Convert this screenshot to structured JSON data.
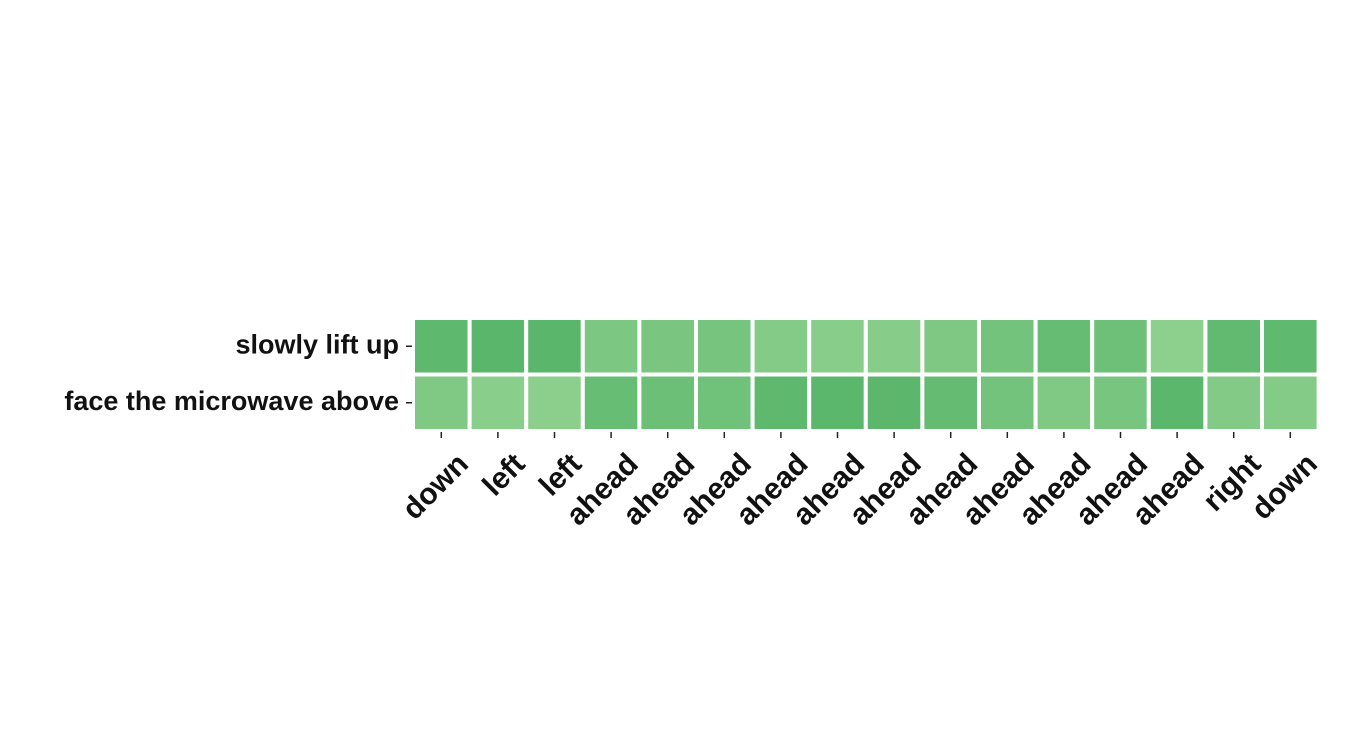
{
  "chart_data": {
    "type": "heatmap",
    "title": "",
    "xlabel": "",
    "ylabel": "",
    "rows": [
      "slowly lift up",
      "face the microwave above"
    ],
    "columns": [
      "down",
      "left",
      "left",
      "ahead",
      "ahead",
      "ahead",
      "ahead",
      "ahead",
      "ahead",
      "ahead",
      "ahead",
      "ahead",
      "ahead",
      "ahead",
      "right",
      "down"
    ],
    "values": [
      [
        0.82,
        0.88,
        0.88,
        0.45,
        0.48,
        0.52,
        0.35,
        0.3,
        0.32,
        0.42,
        0.55,
        0.72,
        0.62,
        0.25,
        0.78,
        0.8
      ],
      [
        0.4,
        0.28,
        0.26,
        0.7,
        0.65,
        0.6,
        0.82,
        0.85,
        0.84,
        0.75,
        0.55,
        0.4,
        0.5,
        0.86,
        0.38,
        0.36
      ]
    ],
    "color_scale": {
      "low": "#a1d99b",
      "high": "#4fb163"
    },
    "colorbar": false,
    "grid": false
  }
}
